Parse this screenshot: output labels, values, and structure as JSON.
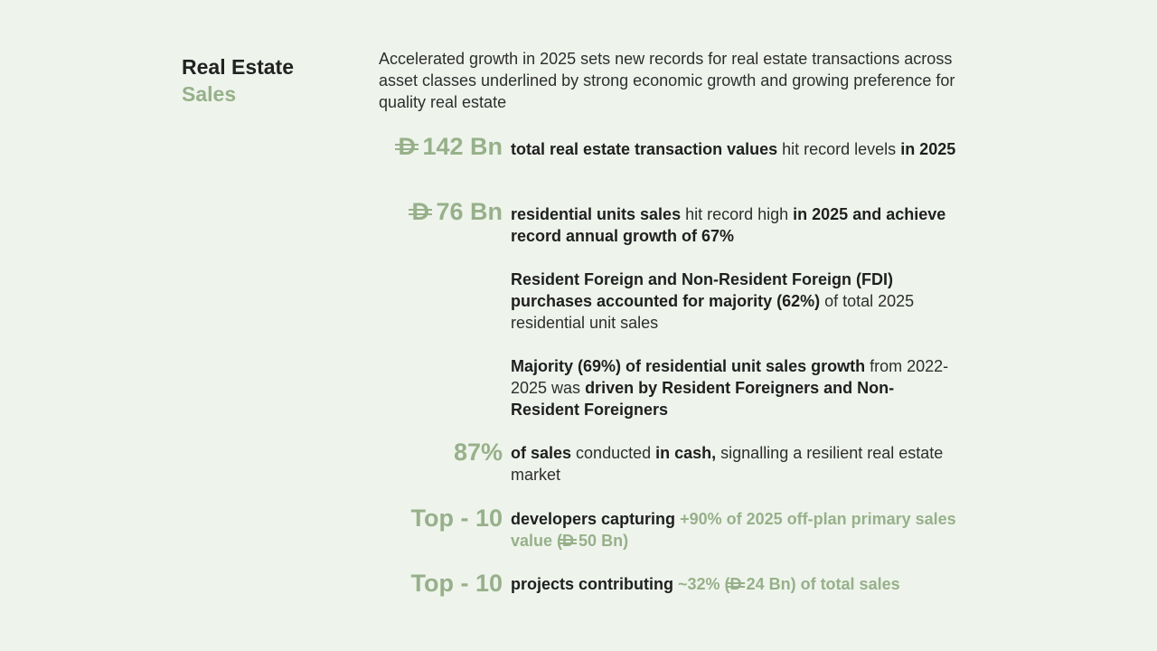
{
  "title": {
    "line1": "Real Estate",
    "line2": "Sales"
  },
  "intro": "Accelerated growth in 2025 sets new records for real estate transactions across asset classes underlined by strong economic growth and growing preference for quality real estate",
  "currency_symbol": "D",
  "stats": [
    {
      "value": "142 Bn",
      "bold1": "total real estate transaction values",
      "plain1": " hit record levels ",
      "bold2": "in 2025"
    },
    {
      "value": "76 Bn",
      "bold1": "residential units sales",
      "plain1": " hit record high ",
      "bold2": "in 2025 and achieve record annual growth of 67%"
    },
    {
      "bold1": "Resident Foreign and Non-Resident Foreign (FDI) purchases accounted for majority (62%)",
      "plain1": " of total 2025 residential unit sales"
    },
    {
      "bold1": "Majority (69%) of residential unit sales growth",
      "plain1": " from 2022-2025 was ",
      "bold2": "driven by Resident Foreigners and Non-Resident Foreigners"
    },
    {
      "value": "87%",
      "bold1": "of sales",
      "plain1": " conducted ",
      "bold2": "in cash,",
      "plain2": " signalling a resilient real estate market"
    },
    {
      "value": "Top - 10",
      "bold1": "developers capturing",
      "green1": " +90% of 2025 off-plan primary sales value (",
      "green_amount": "50 Bn)"
    },
    {
      "value": "Top - 10",
      "bold1": "projects contributing",
      "green1": " ~32% (",
      "green_amount": "24 Bn) of total sales"
    }
  ]
}
